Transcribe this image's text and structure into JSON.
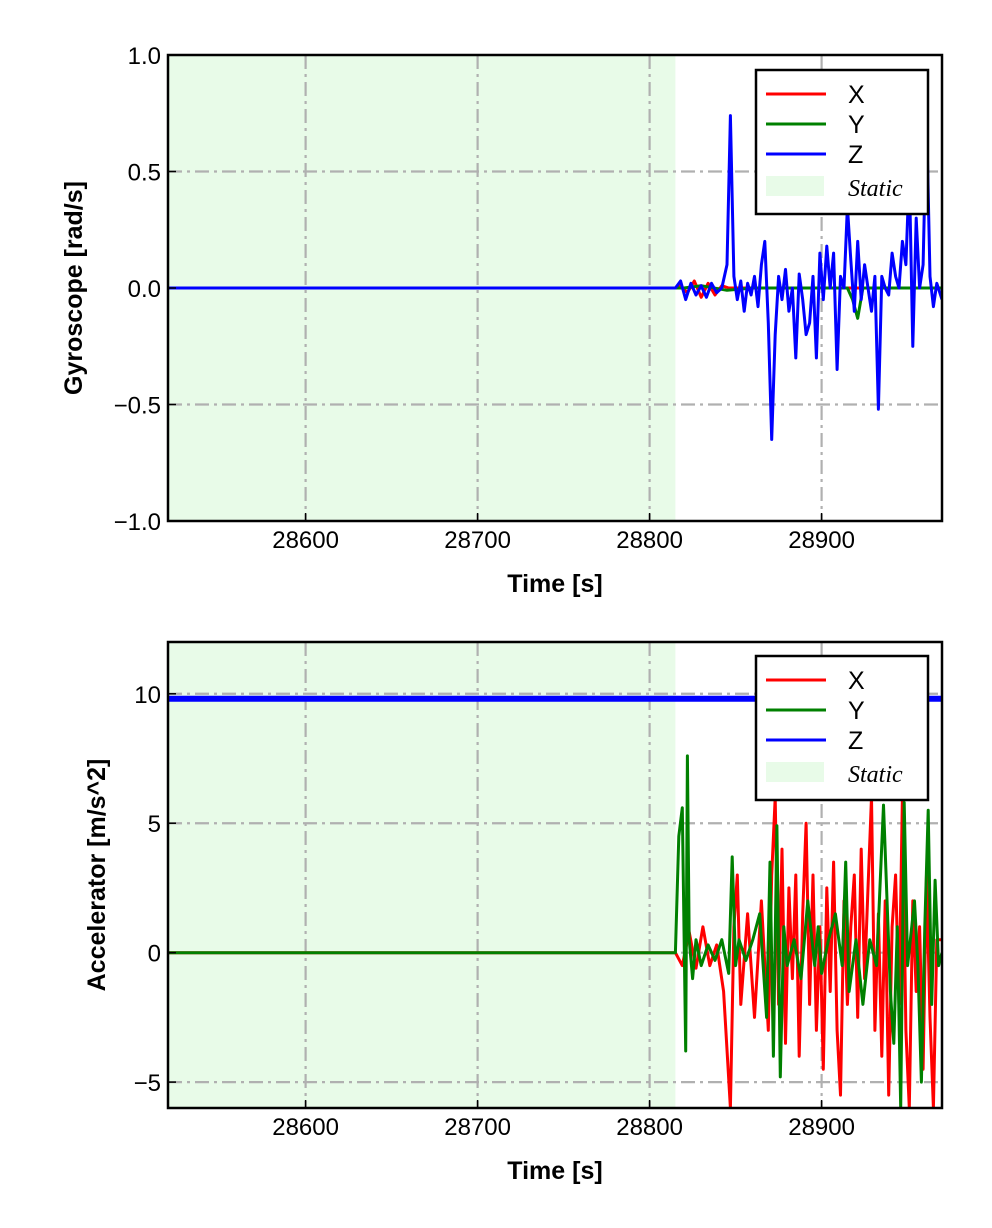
{
  "chart_data": [
    {
      "type": "line",
      "ylabel": "Gyroscope [rad/s]",
      "xlabel": "Time [s]",
      "xlim": [
        28520,
        28970
      ],
      "ylim": [
        -1.0,
        1.0
      ],
      "xticks": [
        "28600",
        "28700",
        "28800",
        "28900"
      ],
      "yticks": [
        "−1.0",
        "−0.5",
        "0.0",
        "0.5",
        "1.0"
      ],
      "grid": true,
      "legend_position": "top-right",
      "static_region": {
        "label": "Static",
        "x_start": 28520,
        "x_end": 28815
      },
      "series": [
        {
          "name": "X",
          "color": "#ff0000",
          "x": [
            28520,
            28815,
            28818,
            28822,
            28826,
            28830,
            28834,
            28838,
            28842,
            28846,
            28850,
            28860,
            28880,
            28900,
            28920,
            28940,
            28960,
            28970
          ],
          "y": [
            0.0,
            0.0,
            0.01,
            -0.02,
            0.03,
            -0.04,
            0.02,
            -0.03,
            0.01,
            0.0,
            0.0,
            0.0,
            0.0,
            0.0,
            0.0,
            0.0,
            0.0,
            0.0
          ]
        },
        {
          "name": "Y",
          "color": "#008000",
          "x": [
            28520,
            28815,
            28820,
            28830,
            28845,
            28860,
            28880,
            28900,
            28915,
            28918,
            28921,
            28924,
            28940,
            28960,
            28970
          ],
          "y": [
            0.0,
            0.0,
            0.0,
            0.01,
            -0.01,
            0.0,
            0.0,
            0.0,
            0.0,
            -0.05,
            -0.13,
            0.0,
            0.0,
            0.0,
            0.0
          ]
        },
        {
          "name": "Z",
          "color": "#0000ff",
          "x": [
            28520,
            28815,
            28818,
            28821,
            28824,
            28827,
            28830,
            28833,
            28836,
            28839,
            28842,
            28845,
            28847,
            28849,
            28851,
            28853,
            28855,
            28857,
            28859,
            28861,
            28863,
            28865,
            28867,
            28869,
            28871,
            28873,
            28875,
            28877,
            28879,
            28881,
            28883,
            28885,
            28887,
            28889,
            28891,
            28893,
            28895,
            28897,
            28899,
            28901,
            28903,
            28905,
            28907,
            28909,
            28911,
            28913,
            28915,
            28917,
            28919,
            28921,
            28923,
            28925,
            28927,
            28929,
            28931,
            28933,
            28935,
            28937,
            28939,
            28941,
            28943,
            28945,
            28947,
            28949,
            28951,
            28953,
            28955,
            28957,
            28959,
            28961,
            28963,
            28965,
            28967,
            28970
          ],
          "y": [
            0.0,
            0.0,
            0.03,
            -0.05,
            0.02,
            -0.03,
            0.01,
            -0.04,
            0.02,
            -0.02,
            0.0,
            0.1,
            0.74,
            0.05,
            -0.05,
            0.03,
            -0.1,
            0.02,
            -0.03,
            0.05,
            -0.08,
            0.1,
            0.2,
            -0.15,
            -0.65,
            -0.2,
            0.05,
            -0.05,
            0.08,
            -0.1,
            0.0,
            -0.3,
            0.06,
            -0.05,
            -0.2,
            -0.15,
            0.05,
            -0.3,
            0.15,
            -0.05,
            0.18,
            0.0,
            0.15,
            -0.35,
            0.05,
            0.0,
            0.35,
            0.12,
            -0.1,
            0.2,
            -0.05,
            0.1,
            0.0,
            -0.1,
            0.05,
            -0.52,
            0.05,
            0.0,
            -0.03,
            0.15,
            0.05,
            0.0,
            0.2,
            0.1,
            0.5,
            -0.25,
            0.3,
            0.0,
            0.1,
            0.75,
            0.05,
            -0.08,
            0.02,
            -0.05
          ]
        }
      ]
    },
    {
      "type": "line",
      "ylabel": "Accelerator [m/s^2]",
      "xlabel": "Time [s]",
      "xlim": [
        28520,
        28970
      ],
      "ylim": [
        -6,
        12
      ],
      "xticks": [
        "28600",
        "28700",
        "28800",
        "28900"
      ],
      "yticks": [
        "−5",
        "0",
        "5",
        "10"
      ],
      "grid": true,
      "legend_position": "top-right",
      "static_region": {
        "label": "Static",
        "x_start": 28520,
        "x_end": 28815
      },
      "series": [
        {
          "name": "X",
          "color": "#ff0000",
          "x": [
            28520,
            28815,
            28819,
            28823,
            28827,
            28831,
            28835,
            28839,
            28843,
            28847,
            28849,
            28851,
            28853,
            28857,
            28861,
            28865,
            28869,
            28871,
            28873,
            28875,
            28877,
            28879,
            28881,
            28883,
            28885,
            28887,
            28889,
            28891,
            28893,
            28895,
            28897,
            28899,
            28901,
            28903,
            28905,
            28907,
            28909,
            28911,
            28913,
            28915,
            28917,
            28919,
            28921,
            28923,
            28925,
            28927,
            28929,
            28931,
            28933,
            28935,
            28937,
            28939,
            28941,
            28943,
            28945,
            28947,
            28949,
            28951,
            28953,
            28955,
            28957,
            28959,
            28961,
            28963,
            28965,
            28967,
            28970
          ],
          "y": [
            0.0,
            0.0,
            -0.5,
            0.8,
            -0.6,
            1.0,
            -0.5,
            0.3,
            -1.5,
            -6.0,
            1.0,
            3.0,
            -2.0,
            1.5,
            -2.5,
            2.0,
            -3.0,
            3.0,
            6.0,
            -2.0,
            4.0,
            -3.5,
            2.5,
            -1.0,
            3.0,
            -4.0,
            1.5,
            5.0,
            -2.0,
            3.0,
            -3.0,
            1.0,
            -4.5,
            2.5,
            -1.5,
            3.5,
            -3.0,
            -5.5,
            2.0,
            -2.0,
            1.0,
            3.0,
            -2.5,
            4.0,
            -1.0,
            2.5,
            6.0,
            -3.0,
            1.5,
            -4.0,
            2.0,
            -5.5,
            1.0,
            3.0,
            -2.0,
            6.0,
            -3.0,
            -6.0,
            2.0,
            -1.5,
            1.0,
            -4.5,
            3.0,
            -2.5,
            -6.0,
            0.5,
            0.5
          ]
        },
        {
          "name": "Y",
          "color": "#008000",
          "x": [
            28520,
            28815,
            28817,
            28819,
            28821,
            28822,
            28823,
            28825,
            28827,
            28830,
            28834,
            28838,
            28842,
            28846,
            28848,
            28850,
            28852,
            28856,
            28860,
            28864,
            28868,
            28870,
            28872,
            28874,
            28876,
            28878,
            28880,
            28884,
            28888,
            28892,
            28896,
            28898,
            28900,
            28904,
            28908,
            28912,
            28914,
            28916,
            28920,
            28924,
            28928,
            28932,
            28936,
            28940,
            28942,
            28944,
            28946,
            28948,
            28950,
            28954,
            28956,
            28958,
            28960,
            28962,
            28964,
            28966,
            28968,
            28970
          ],
          "y": [
            0.0,
            0.0,
            4.5,
            5.6,
            -3.8,
            7.6,
            0.5,
            -1.0,
            0.5,
            -0.5,
            0.3,
            -0.3,
            0.5,
            -0.8,
            3.7,
            -0.5,
            0.5,
            -0.3,
            0.5,
            1.5,
            -2.5,
            3.5,
            -4.0,
            4.9,
            -4.8,
            1.0,
            -0.5,
            0.5,
            -1.0,
            2.0,
            -0.5,
            1.0,
            -0.8,
            0.5,
            1.5,
            -0.5,
            3.5,
            -1.5,
            0.5,
            -2.0,
            0.5,
            -0.5,
            5.7,
            -1.5,
            -3.5,
            1.0,
            -6.0,
            5.8,
            -0.5,
            2.0,
            -0.5,
            -5.0,
            1.0,
            5.5,
            -2.0,
            2.8,
            -0.5,
            0.0
          ]
        },
        {
          "name": "Z",
          "color": "#0000ff",
          "x": [
            28520,
            28970
          ],
          "y": [
            9.81,
            9.81
          ]
        }
      ]
    }
  ]
}
